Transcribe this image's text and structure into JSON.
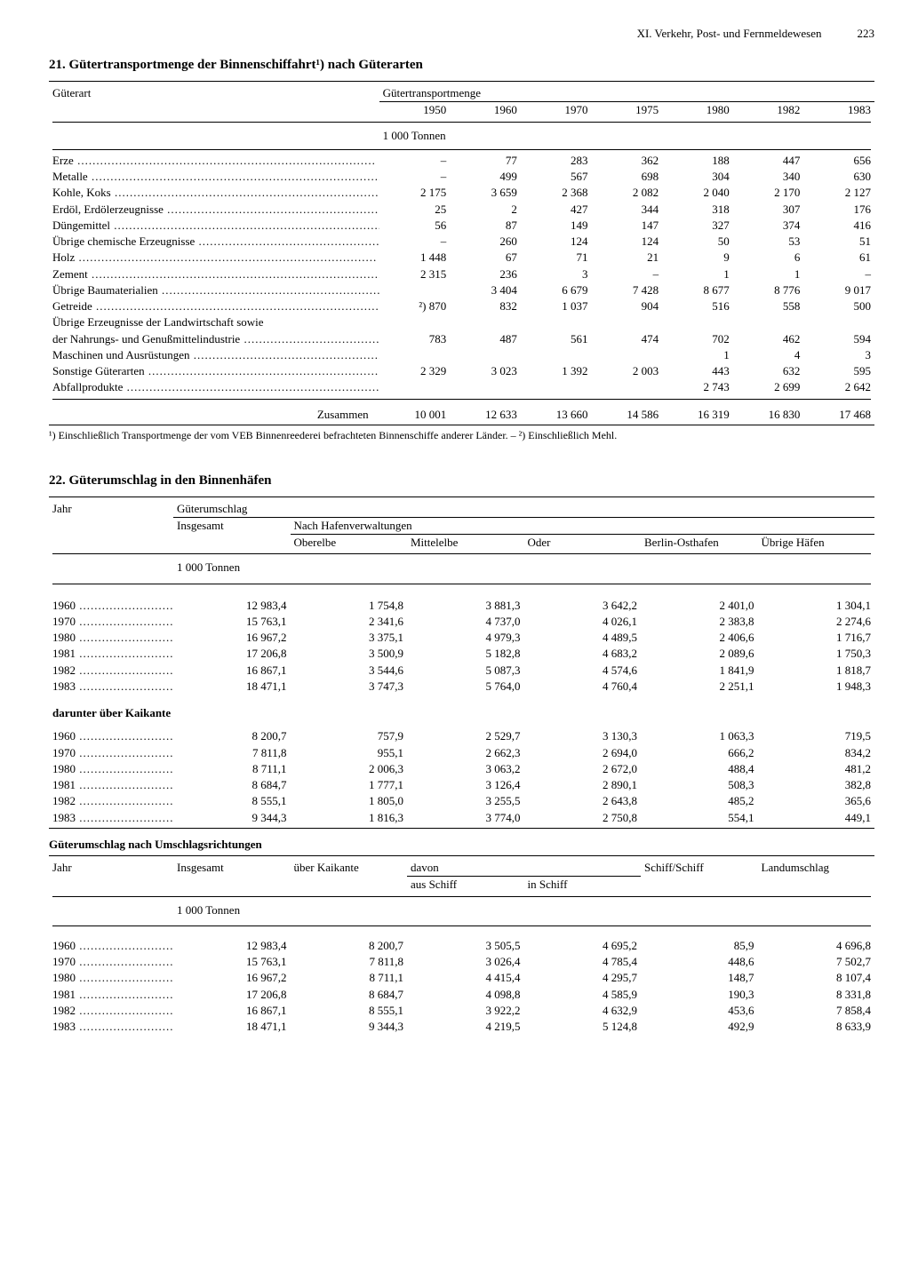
{
  "page": {
    "chapter": "XI. Verkehr, Post- und Fernmeldewesen",
    "number": "223"
  },
  "table21": {
    "title": "21. Gütertransportmenge der Binnenschiffahrt¹) nach Güterarten",
    "col_label": "Güterart",
    "group_header": "Gütertransportmenge",
    "years": [
      "1950",
      "1960",
      "1970",
      "1975",
      "1980",
      "1982",
      "1983"
    ],
    "unit": "1 000 Tonnen",
    "rows": [
      {
        "label": "Erze",
        "v": [
          "–",
          "77",
          "283",
          "362",
          "188",
          "447",
          "656"
        ]
      },
      {
        "label": "Metalle",
        "v": [
          "–",
          "499",
          "567",
          "698",
          "304",
          "340",
          "630"
        ]
      },
      {
        "label": "Kohle, Koks",
        "v": [
          "2 175",
          "3 659",
          "2 368",
          "2 082",
          "2 040",
          "2 170",
          "2 127"
        ]
      },
      {
        "label": "Erdöl, Erdölerzeugnisse",
        "v": [
          "25",
          "2",
          "427",
          "344",
          "318",
          "307",
          "176"
        ]
      },
      {
        "label": "Düngemittel",
        "v": [
          "56",
          "87",
          "149",
          "147",
          "327",
          "374",
          "416"
        ]
      },
      {
        "label": "Übrige chemische Erzeugnisse",
        "v": [
          "–",
          "260",
          "124",
          "124",
          "50",
          "53",
          "51"
        ]
      },
      {
        "label": "Holz",
        "v": [
          "1 448",
          "67",
          "71",
          "21",
          "9",
          "6",
          "61"
        ]
      },
      {
        "label": "Zement",
        "v": [
          "2 315",
          "236",
          "3",
          "–",
          "1",
          "1",
          "–"
        ]
      },
      {
        "label": "Übrige Baumaterialien",
        "v": [
          "",
          "3 404",
          "6 679",
          "7 428",
          "8 677",
          "8 776",
          "9 017"
        ]
      },
      {
        "label": "Getreide",
        "v": [
          "²) 870",
          "832",
          "1 037",
          "904",
          "516",
          "558",
          "500"
        ]
      },
      {
        "label": "Übrige Erzeugnisse der Landwirtschaft sowie",
        "nodots": true,
        "v": [
          "",
          "",
          "",
          "",
          "",
          "",
          ""
        ]
      },
      {
        "label": "  der Nahrungs- und Genußmittelindustrie",
        "v": [
          "783",
          "487",
          "561",
          "474",
          "702",
          "462",
          "594"
        ]
      },
      {
        "label": "Maschinen und Ausrüstungen",
        "v": [
          "",
          "",
          "",
          "",
          "1",
          "4",
          "3"
        ]
      },
      {
        "label": "Sonstige Güterarten",
        "v": [
          "2 329",
          "3 023",
          "1 392",
          "2 003",
          "443",
          "632",
          "595"
        ]
      },
      {
        "label": "Abfallprodukte",
        "v": [
          "",
          "",
          "",
          "",
          "2 743",
          "2 699",
          "2 642"
        ]
      }
    ],
    "sum_label": "Zusammen",
    "sum": [
      "10 001",
      "12 633",
      "13 660",
      "14 586",
      "16 319",
      "16 830",
      "17 468"
    ],
    "footnote": "¹) Einschließlich Transportmenge der vom VEB Binnenreederei befrachteten Binnenschiffe anderer Länder. – ²) Einschließlich Mehl."
  },
  "table22": {
    "title": "22. Güterumschlag in den Binnenhäfen",
    "part1": {
      "col_year": "Jahr",
      "group_header": "Güterumschlag",
      "col_total": "Insgesamt",
      "sub_group": "Nach Hafenverwaltungen",
      "cols": [
        "Oberelbe",
        "Mittelelbe",
        "Oder",
        "Berlin-Osthafen",
        "Übrige Häfen"
      ],
      "unit": "1 000 Tonnen",
      "rows": [
        {
          "y": "1960",
          "v": [
            "12 983,4",
            "1 754,8",
            "3 881,3",
            "3 642,2",
            "2 401,0",
            "1 304,1"
          ]
        },
        {
          "y": "1970",
          "v": [
            "15 763,1",
            "2 341,6",
            "4 737,0",
            "4 026,1",
            "2 383,8",
            "2 274,6"
          ]
        },
        {
          "y": "1980",
          "v": [
            "16 967,2",
            "3 375,1",
            "4 979,3",
            "4 489,5",
            "2 406,6",
            "1 716,7"
          ]
        },
        {
          "y": "1981",
          "v": [
            "17 206,8",
            "3 500,9",
            "5 182,8",
            "4 683,2",
            "2 089,6",
            "1 750,3"
          ]
        },
        {
          "y": "1982",
          "v": [
            "16 867,1",
            "3 544,6",
            "5 087,3",
            "4 574,6",
            "1 841,9",
            "1 818,7"
          ]
        },
        {
          "y": "1983",
          "v": [
            "18 471,1",
            "3 747,3",
            "5 764,0",
            "4 760,4",
            "2 251,1",
            "1 948,3"
          ]
        }
      ],
      "sub_label": "darunter über Kaikante",
      "rows2": [
        {
          "y": "1960",
          "v": [
            "8 200,7",
            "757,9",
            "2 529,7",
            "3 130,3",
            "1 063,3",
            "719,5"
          ]
        },
        {
          "y": "1970",
          "v": [
            "7 811,8",
            "955,1",
            "2 662,3",
            "2 694,0",
            "666,2",
            "834,2"
          ]
        },
        {
          "y": "1980",
          "v": [
            "8 711,1",
            "2 006,3",
            "3 063,2",
            "2 672,0",
            "488,4",
            "481,2"
          ]
        },
        {
          "y": "1981",
          "v": [
            "8 684,7",
            "1 777,1",
            "3 126,4",
            "2 890,1",
            "508,3",
            "382,8"
          ]
        },
        {
          "y": "1982",
          "v": [
            "8 555,1",
            "1 805,0",
            "3 255,5",
            "2 643,8",
            "485,2",
            "365,6"
          ]
        },
        {
          "y": "1983",
          "v": [
            "9 344,3",
            "1 816,3",
            "3 774,0",
            "2 750,8",
            "554,1",
            "449,1"
          ]
        }
      ]
    },
    "part2": {
      "title": "Güterumschlag nach Umschlagsrichtungen",
      "col_year": "Jahr",
      "cols": [
        "Insgesamt",
        "über Kaikante",
        "davon",
        "",
        "Schiff/Schiff",
        "Landumschlag"
      ],
      "subcols": [
        "aus Schiff",
        "in Schiff"
      ],
      "unit": "1 000 Tonnen",
      "rows": [
        {
          "y": "1960",
          "v": [
            "12 983,4",
            "8 200,7",
            "3 505,5",
            "4 695,2",
            "85,9",
            "4 696,8"
          ]
        },
        {
          "y": "1970",
          "v": [
            "15 763,1",
            "7 811,8",
            "3 026,4",
            "4 785,4",
            "448,6",
            "7 502,7"
          ]
        },
        {
          "y": "1980",
          "v": [
            "16 967,2",
            "8 711,1",
            "4 415,4",
            "4 295,7",
            "148,7",
            "8 107,4"
          ]
        },
        {
          "y": "1981",
          "v": [
            "17 206,8",
            "8 684,7",
            "4 098,8",
            "4 585,9",
            "190,3",
            "8 331,8"
          ]
        },
        {
          "y": "1982",
          "v": [
            "16 867,1",
            "8 555,1",
            "3 922,2",
            "4 632,9",
            "453,6",
            "7 858,4"
          ]
        },
        {
          "y": "1983",
          "v": [
            "18 471,1",
            "9 344,3",
            "4 219,5",
            "5 124,8",
            "492,9",
            "8 633,9"
          ]
        }
      ]
    }
  }
}
